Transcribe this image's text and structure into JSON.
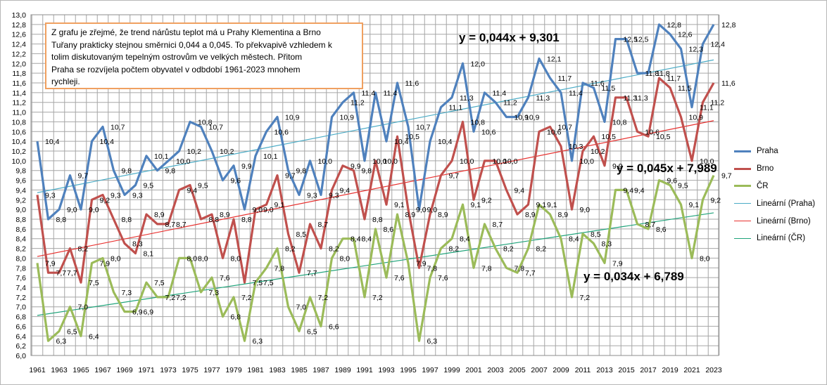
{
  "note": "Z grafu je zřejmé, že trend nárůstu teplot má u Prahy Klementina a Brno\nTuřany prakticky stejnou směrnici 0,044  a 0,045.  To překvapivě vzhledem k\ntolim diskutovaným tepelným ostrovům ve velkých městech. Přitom\nPraha se rozvíjela počtem obyvatel v odbdobí 1961-2023  mnohem\nrychleji.",
  "colors": {
    "praha": "#4f81bd",
    "brno": "#c0504d",
    "cr": "#9bbb59",
    "trend_praha": "#4bacc6",
    "trend_brno": "#e8312f",
    "trend_cr": "#1fa37a",
    "grid": "#a6a6a6"
  },
  "chart_data": {
    "type": "line",
    "categories": [
      "1961",
      "1962",
      "1963",
      "1964",
      "1965",
      "1966",
      "1967",
      "1968",
      "1969",
      "1970",
      "1971",
      "1972",
      "1973",
      "1974",
      "1975",
      "1976",
      "1977",
      "1978",
      "1979",
      "1980",
      "1981",
      "1982",
      "1983",
      "1984",
      "1985",
      "1986",
      "1987",
      "1988",
      "1989",
      "1990",
      "1991",
      "1992",
      "1993",
      "1994",
      "1995",
      "1996",
      "1997",
      "1998",
      "1999",
      "2000",
      "2001",
      "2002",
      "2003",
      "2004",
      "2005",
      "2006",
      "2007",
      "2008",
      "2009",
      "2010",
      "2011",
      "2012",
      "2013",
      "2014",
      "2015",
      "2016",
      "2017",
      "2018",
      "2019",
      "2020",
      "2021",
      "2022",
      "2023"
    ],
    "x_tick_labels": [
      "1961",
      "1963",
      "1965",
      "1967",
      "1969",
      "1971",
      "1973",
      "1975",
      "1977",
      "1979",
      "1981",
      "1983",
      "1985",
      "1987",
      "1989",
      "1991",
      "1993",
      "1995",
      "1997",
      "1999",
      "2001",
      "2003",
      "2005",
      "2007",
      "2009",
      "2011",
      "2013",
      "2015",
      "2017",
      "2019",
      "2021",
      "2023"
    ],
    "ylim": [
      6.0,
      13.0
    ],
    "y_tick_labels": [
      "6,0",
      "6,2",
      "6,4",
      "6,6",
      "6,8",
      "7,0",
      "7,2",
      "7,4",
      "7,6",
      "7,8",
      "8,0",
      "8,2",
      "8,4",
      "8,6",
      "8,8",
      "9,0",
      "9,2",
      "9,4",
      "9,6",
      "9,8",
      "10,0",
      "10,2",
      "10,4",
      "10,6",
      "10,8",
      "11,0",
      "11,2",
      "11,4",
      "11,6",
      "11,8",
      "12,0",
      "12,2",
      "12,4",
      "12,6",
      "12,8",
      "13,0"
    ],
    "grid": true,
    "legend_position": "right",
    "series": [
      {
        "name": "Praha",
        "values": [
          10.4,
          8.8,
          9.0,
          9.7,
          9.0,
          10.4,
          10.7,
          9.8,
          9.3,
          9.5,
          10.1,
          9.8,
          10.0,
          10.2,
          10.8,
          10.7,
          10.2,
          9.6,
          9.9,
          9.0,
          10.1,
          10.6,
          10.9,
          9.8,
          9.3,
          10.0,
          9.3,
          10.9,
          11.2,
          11.4,
          10.0,
          11.4,
          10.4,
          11.6,
          10.7,
          9.0,
          10.4,
          11.1,
          11.3,
          12.0,
          10.6,
          11.4,
          11.2,
          10.9,
          10.9,
          11.3,
          12.1,
          11.7,
          11.4,
          10.0,
          11.6,
          11.5,
          10.8,
          12.5,
          12.5,
          11.8,
          11.8,
          12.8,
          12.6,
          12.3,
          11.1,
          12.4,
          12.8
        ]
      },
      {
        "name": "Brno",
        "values": [
          9.3,
          7.7,
          7.7,
          8.2,
          7.5,
          9.2,
          9.3,
          8.8,
          8.3,
          8.1,
          8.9,
          8.7,
          8.7,
          9.4,
          9.5,
          8.8,
          8.9,
          8.0,
          8.8,
          7.5,
          9.0,
          9.1,
          9.7,
          8.5,
          7.7,
          8.7,
          8.2,
          9.4,
          9.9,
          9.8,
          8.8,
          10.0,
          9.1,
          10.5,
          9.0,
          7.8,
          8.9,
          9.7,
          10.0,
          10.8,
          9.2,
          10.0,
          10.0,
          9.4,
          8.9,
          9.1,
          10.6,
          10.7,
          10.3,
          9.0,
          10.2,
          10.5,
          9.9,
          11.3,
          11.3,
          10.6,
          10.5,
          11.7,
          11.5,
          10.9,
          10.0,
          11.2,
          11.6
        ]
      },
      {
        "name": "ČR",
        "values": [
          7.9,
          6.3,
          6.5,
          7.0,
          6.4,
          7.9,
          8.0,
          7.3,
          6.9,
          6.9,
          7.5,
          7.2,
          7.2,
          8.0,
          8.0,
          7.3,
          7.6,
          6.8,
          7.2,
          6.3,
          7.5,
          7.8,
          8.2,
          7.0,
          6.5,
          7.2,
          6.6,
          8.0,
          8.4,
          8.4,
          7.2,
          8.6,
          7.6,
          8.9,
          7.9,
          6.3,
          7.6,
          8.2,
          8.4,
          9.1,
          7.8,
          8.7,
          8.2,
          7.8,
          7.7,
          8.2,
          9.1,
          8.9,
          8.4,
          7.2,
          8.5,
          8.3,
          7.9,
          9.4,
          9.4,
          8.7,
          8.6,
          9.6,
          9.5,
          9.1,
          8.0,
          9.2,
          9.7
        ]
      }
    ],
    "trendlines": [
      {
        "name": "Lineární (Praha)",
        "slope": 0.044,
        "intercept": 9.301,
        "equation": "y = 0,044x + 9,301"
      },
      {
        "name": "Lineární (Brno)",
        "slope": 0.045,
        "intercept": 7.989,
        "equation": "y = 0,045x + 7,989"
      },
      {
        "name": "Lineární (ČR)",
        "slope": 0.034,
        "intercept": 6.789,
        "equation": "y = 0,034x + 6,789"
      }
    ]
  }
}
